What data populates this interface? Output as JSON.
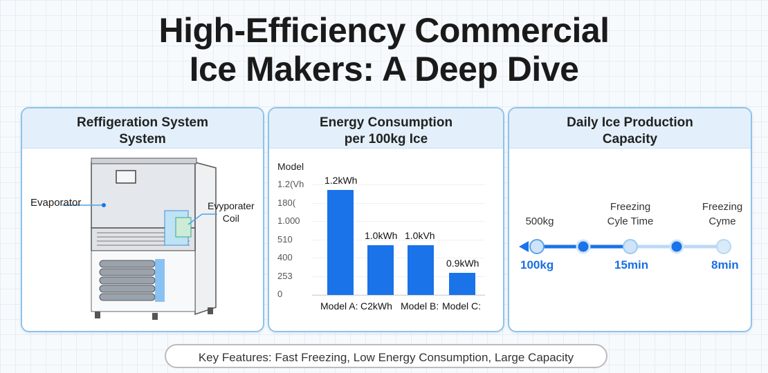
{
  "title": {
    "line1": "High-Efficiency Commercial",
    "line2": "Ice Makers: A Deep Dive"
  },
  "panels": [
    {
      "heading1": "Reffigeration System",
      "heading2": "System",
      "labels": {
        "left": "Evaporator",
        "right1": "Evyporater",
        "right2": "Coil"
      }
    },
    {
      "heading1": "Energy Consumption",
      "heading2": "per 100kg Ice"
    },
    {
      "heading1": "Daily Ice Production",
      "heading2": "Capacity",
      "timeline": {
        "top_labels": [
          "500kg",
          "Freezing\nCyle Time",
          "Freezing\nCyme"
        ],
        "bottom_labels": [
          "100kg",
          "15min",
          "8min"
        ]
      }
    }
  ],
  "chart_data": {
    "type": "bar",
    "ylabel": "Model",
    "y_tick_labels": [
      "1.2(Vh",
      "180(",
      "1.000",
      "510",
      "400",
      "253",
      "0"
    ],
    "categories": [
      "Model A:",
      "C2kWh",
      "Model B:",
      "Model C:"
    ],
    "values": [
      1.2,
      1.0,
      1.0,
      0.9
    ],
    "data_labels": [
      "1.2kWh",
      "1.0kWh",
      "1.0kVh",
      "0.9kWh"
    ],
    "bar_color": "#1a73e8",
    "grid": true
  },
  "footer": "Key Features: Fast Freezing, Low Energy Consumption, Large Capacity",
  "colors": {
    "accent": "#1a73e8",
    "panel_border": "#8fc3ea",
    "header_bg": "#e3f0fb"
  }
}
